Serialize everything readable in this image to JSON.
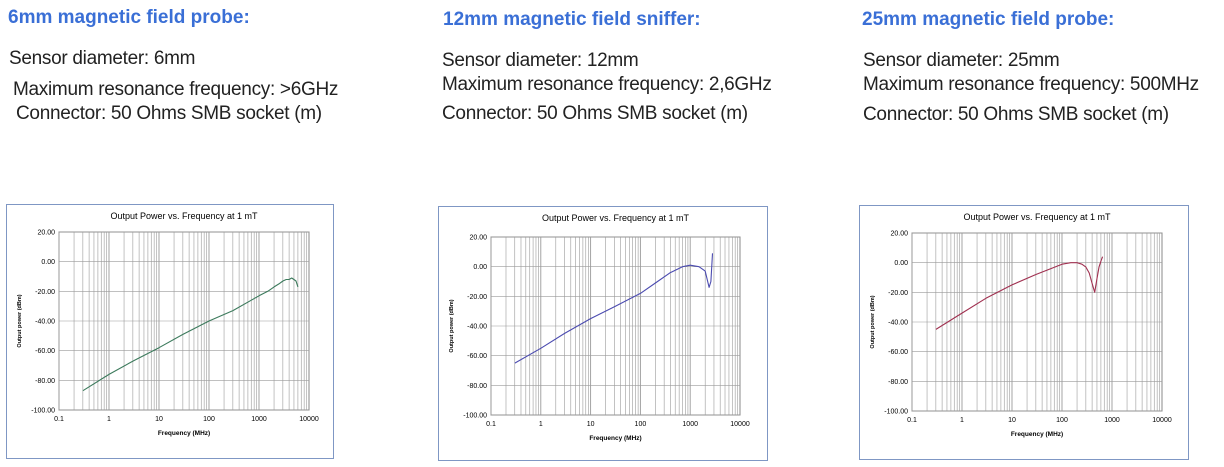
{
  "probes": [
    {
      "title": "6mm magnetic field probe:",
      "specs": [
        "Sensor diameter: 6mm",
        "Maximum resonance frequency: >6GHz",
        "Connector: 50 Ohms SMB socket (m)"
      ]
    },
    {
      "title": "12mm magnetic field sniffer:",
      "specs": [
        "Sensor diameter: 12mm",
        "Maximum resonance frequency: 2,6GHz",
        "Connector: 50 Ohms SMB socket (m)"
      ]
    },
    {
      "title": "25mm magnetic field probe:",
      "specs": [
        "Sensor diameter: 25mm",
        "Maximum resonance frequency: 500MHz",
        "Connector: 50 Ohms SMB socket (m)"
      ]
    }
  ],
  "colors": {
    "title": "#3a6fd6",
    "frame": "#7f97c4"
  },
  "chart_data": [
    {
      "type": "line",
      "title": "Output Power vs. Frequency at 1 mT",
      "xlabel": "Frequency (MHz)",
      "ylabel": "Output power (dBm)",
      "xscale": "log",
      "xlim": [
        0.1,
        10000
      ],
      "ylim": [
        -100,
        20
      ],
      "xticks": [
        "0.1",
        "1",
        "10",
        "100",
        "1000",
        "10000"
      ],
      "yticks": [
        "20.00",
        "0.00",
        "-20.00",
        "-40.00",
        "-60.00",
        "-80.00",
        "-100.00"
      ],
      "grid": true,
      "legend": "none",
      "line_color": "#3c7a5c",
      "series": [
        {
          "x": [
            0.3,
            1,
            3,
            10,
            30,
            100,
            300,
            700,
            1000,
            1500,
            2000,
            2500,
            3000,
            3500,
            4000,
            4500,
            5000,
            5500,
            6000
          ],
          "y": [
            -87,
            -76,
            -67,
            -58,
            -49,
            -40,
            -33,
            -26,
            -23,
            -20,
            -17,
            -15,
            -13,
            -12,
            -12,
            -11,
            -12,
            -13,
            -17
          ]
        }
      ]
    },
    {
      "type": "line",
      "title": "Output Power vs. Frequency at 1 mT",
      "xlabel": "Frequency (MHz)",
      "ylabel": "Output power (dBm)",
      "xscale": "log",
      "xlim": [
        0.1,
        10000
      ],
      "ylim": [
        -100,
        20
      ],
      "xticks": [
        "0.1",
        "1",
        "10",
        "100",
        "1000",
        "10000"
      ],
      "yticks": [
        "20.00",
        "0.00",
        "-20.00",
        "-40.00",
        "-60.00",
        "-80.00",
        "-100.00"
      ],
      "grid": true,
      "legend": "none",
      "line_color": "#4b4bb0",
      "series": [
        {
          "x": [
            0.3,
            1,
            3,
            10,
            30,
            100,
            200,
            400,
            700,
            1000,
            1500,
            2000,
            2400,
            2600,
            2800
          ],
          "y": [
            -65,
            -55,
            -45,
            -35,
            -27,
            -18,
            -11,
            -4,
            0,
            1,
            0,
            -3,
            -14,
            -10,
            9
          ]
        }
      ]
    },
    {
      "type": "line",
      "title": "Output Power vs. Frequency at 1 mT",
      "xlabel": "Frequency (MHz)",
      "ylabel": "Output power (dBm)",
      "xscale": "log",
      "xlim": [
        0.1,
        10000
      ],
      "ylim": [
        -100,
        20
      ],
      "xticks": [
        "0.1",
        "1",
        "10",
        "100",
        "1000",
        "10000"
      ],
      "yticks": [
        "20.00",
        "0.00",
        "-20.00",
        "-40.00",
        "-60.00",
        "-80.00",
        "-100.00"
      ],
      "grid": true,
      "legend": "none",
      "line_color": "#a03050",
      "series": [
        {
          "x": [
            0.3,
            1,
            3,
            10,
            30,
            60,
            100,
            150,
            200,
            250,
            300,
            350,
            400,
            450,
            500,
            550,
            600,
            650
          ],
          "y": [
            -45,
            -34,
            -24,
            -15,
            -8,
            -4,
            -1,
            0,
            0,
            -1,
            -3,
            -7,
            -14,
            -20,
            -11,
            -3,
            1,
            4
          ]
        }
      ]
    }
  ]
}
